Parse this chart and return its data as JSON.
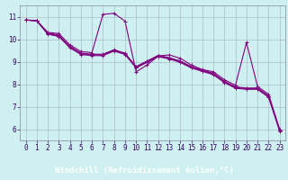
{
  "background_color": "#cff0f0",
  "plot_bg_color": "#cff0f0",
  "line_color": "#800080",
  "grid_color": "#aabbcc",
  "xlabel": "Windchill (Refroidissement éolien,°C)",
  "xlabel_bg": "#330066",
  "xlabel_fg": "#ffffff",
  "xlim": [
    -0.5,
    23.5
  ],
  "ylim": [
    5.5,
    11.5
  ],
  "yticks": [
    6,
    7,
    8,
    9,
    10,
    11
  ],
  "xticks": [
    0,
    1,
    2,
    3,
    4,
    5,
    6,
    7,
    8,
    9,
    10,
    11,
    12,
    13,
    14,
    15,
    16,
    17,
    18,
    19,
    20,
    21,
    22,
    23
  ],
  "series": [
    [
      10.85,
      10.82,
      10.3,
      10.25,
      9.75,
      9.45,
      9.4,
      11.1,
      11.15,
      10.8,
      8.55,
      8.85,
      9.25,
      9.3,
      9.15,
      8.85,
      8.65,
      8.55,
      8.2,
      7.95,
      9.85,
      7.9,
      7.55,
      6.0
    ],
    [
      10.85,
      10.82,
      10.28,
      10.18,
      9.68,
      9.38,
      9.33,
      9.33,
      9.53,
      9.38,
      8.78,
      9.03,
      9.28,
      9.18,
      9.03,
      8.78,
      8.63,
      8.48,
      8.13,
      7.88,
      7.83,
      7.83,
      7.48,
      5.98
    ],
    [
      10.85,
      10.82,
      10.25,
      10.15,
      9.65,
      9.35,
      9.3,
      9.3,
      9.5,
      9.35,
      8.75,
      9.0,
      9.25,
      9.15,
      9.0,
      8.75,
      8.6,
      8.45,
      8.1,
      7.85,
      7.8,
      7.8,
      7.45,
      5.95
    ],
    [
      10.85,
      10.82,
      10.22,
      10.12,
      9.62,
      9.32,
      9.27,
      9.27,
      9.47,
      9.32,
      8.72,
      8.97,
      9.22,
      9.12,
      8.97,
      8.72,
      8.57,
      8.42,
      8.07,
      7.82,
      7.77,
      7.77,
      7.42,
      5.92
    ]
  ],
  "marker": "+",
  "markersize": 3,
  "linewidth": 0.8,
  "tick_fontsize": 5.5,
  "xlabel_fontsize": 6.5
}
